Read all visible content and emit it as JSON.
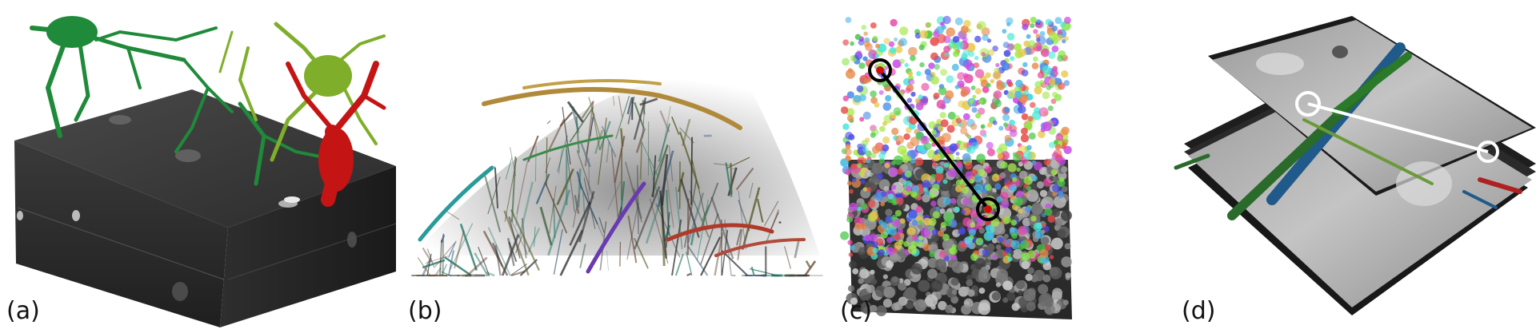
{
  "figure": {
    "panels": [
      {
        "label": "(a)"
      },
      {
        "label": "(b)"
      },
      {
        "label": "(c)"
      },
      {
        "label": "(d)"
      }
    ]
  },
  "colors": {
    "neuron_dark_green": "#1f8a3a",
    "neuron_light_green": "#7fae2a",
    "neuron_red": "#c41414",
    "em_volume_dark": "#2a2a2a",
    "em_volume_light": "#8a8a8a",
    "marker_black": "#000000",
    "marker_white": "#ffffff"
  }
}
